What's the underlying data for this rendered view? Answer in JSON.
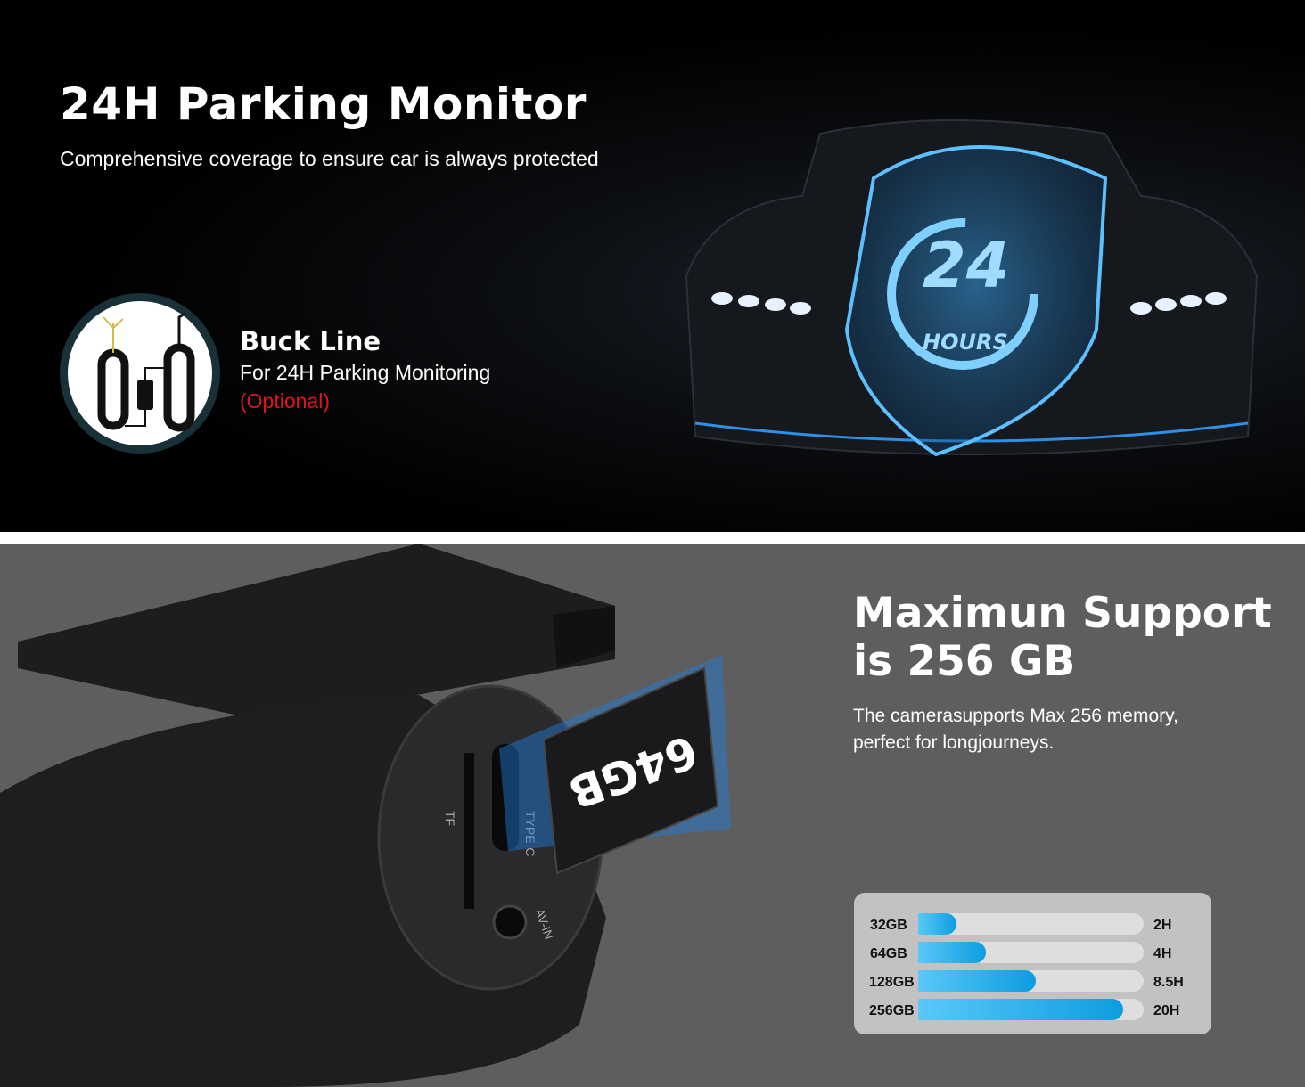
{
  "parking": {
    "title": "24H Parking Monitor",
    "subtitle": "Comprehensive coverage to ensure car is always protected",
    "badge_text": [
      "24",
      "HOURS"
    ],
    "buck_line": {
      "title": "Buck Line",
      "subtitle": "For 24H Parking Monitoring",
      "note": "(Optional)",
      "note_color": "#e0151b"
    }
  },
  "storage": {
    "title_line1": "Maximun Support",
    "title_line2": "is 256 GB",
    "description_line1": "The camerasupports Max 256 memory,",
    "description_line2": "perfect for longjourneys.",
    "card_label": "64GB",
    "port_labels": [
      "TF",
      "TYPE-C",
      "AV-IN"
    ],
    "bar_color": "#0c9de0",
    "rows": [
      {
        "capacity": "32GB",
        "duration": "2H",
        "fill_percent": 17
      },
      {
        "capacity": "64GB",
        "duration": "4H",
        "fill_percent": 30
      },
      {
        "capacity": "128GB",
        "duration": "8.5H",
        "fill_percent": 52
      },
      {
        "capacity": "256GB",
        "duration": "20H",
        "fill_percent": 91
      }
    ]
  }
}
